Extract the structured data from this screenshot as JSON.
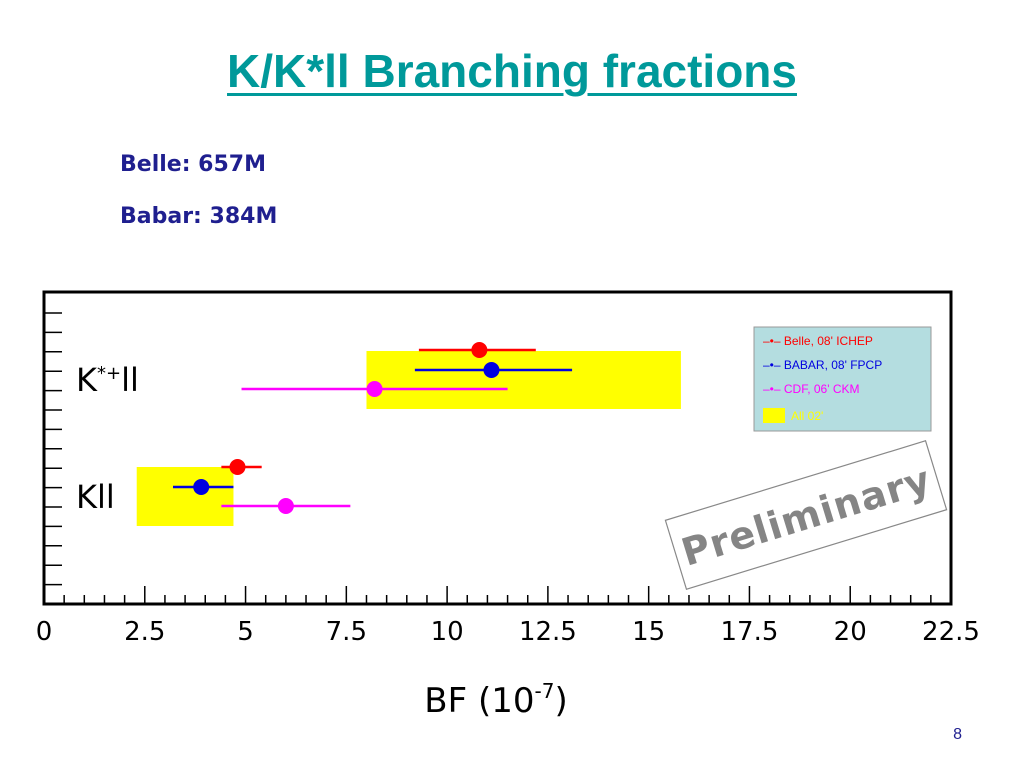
{
  "slide": {
    "title": "K/K*ll Branching fractions",
    "stats": [
      "Belle: 657M",
      "Babar: 384M"
    ],
    "page_number": "8"
  },
  "chart_data": {
    "type": "scatter",
    "title": "",
    "xlabel": "BF (10",
    "xlabel_exp": "-7",
    "xlabel_close": ")",
    "xlim": [
      0,
      22.5
    ],
    "x_ticks": [
      "0",
      "2.5",
      "5",
      "7.5",
      "10",
      "12.5",
      "15",
      "17.5",
      "20",
      "22.5"
    ],
    "grid": false,
    "categories": [
      {
        "label": "K*ll",
        "label_display": "K*+ll"
      },
      {
        "label": "Kll",
        "label_display": "Kll"
      }
    ],
    "series": [
      {
        "name": "Belle, 08' ICHEP",
        "color": "#ff0000",
        "legend_label": "–•– Belle, 08' ICHEP",
        "values": [
          {
            "category": "K*ll",
            "value": 10.8,
            "low": 9.3,
            "high": 12.2
          },
          {
            "category": "Kll",
            "value": 4.8,
            "low": 4.4,
            "high": 5.4
          }
        ]
      },
      {
        "name": "BABAR, 08' FPCP",
        "color": "#0000e0",
        "legend_label": "–•– BABAR, 08' FPCP",
        "values": [
          {
            "category": "K*ll",
            "value": 11.1,
            "low": 9.2,
            "high": 13.1
          },
          {
            "category": "Kll",
            "value": 3.9,
            "low": 3.2,
            "high": 4.7
          }
        ]
      },
      {
        "name": "CDF, 06' CKM",
        "color": "#ff00ff",
        "legend_label": "–•– CDF, 06' CKM",
        "values": [
          {
            "category": "K*ll",
            "value": 8.2,
            "low": 4.9,
            "high": 11.5
          },
          {
            "category": "Kll",
            "value": 6.0,
            "low": 4.4,
            "high": 7.6
          }
        ]
      }
    ],
    "bands": {
      "name": "All 02'",
      "color": "#ffff00",
      "legend_label": "All 02'",
      "values": [
        {
          "category": "K*ll",
          "low": 8.0,
          "high": 15.8
        },
        {
          "category": "Kll",
          "low": 2.3,
          "high": 4.7
        }
      ]
    },
    "legend_position": "top-right",
    "legend_background": "#b4dde0",
    "annotation": "Preliminary"
  }
}
